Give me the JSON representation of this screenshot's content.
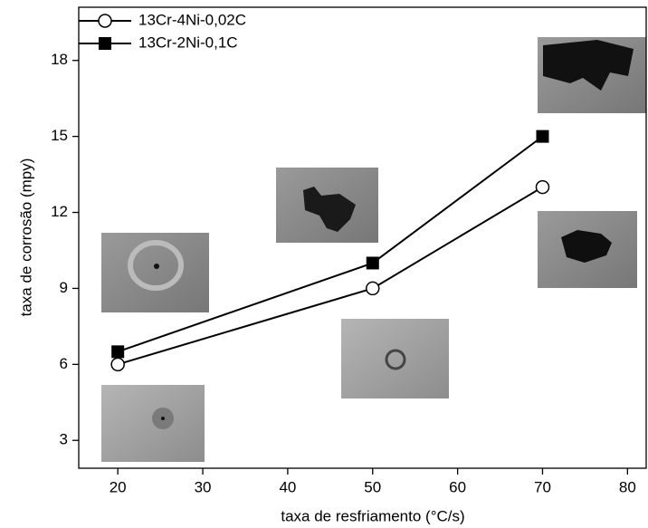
{
  "chart_data": {
    "type": "line",
    "x_label": "taxa de resfriamento (°C/s)",
    "y_label": "taxa de corrosão (mpy)",
    "x": [
      20,
      50,
      70
    ],
    "series": [
      {
        "name": "13Cr-4Ni-0,02C",
        "marker": "open-circle",
        "color": "#000000",
        "values": [
          6,
          9,
          13
        ]
      },
      {
        "name": "13Cr-2Ni-0,1C",
        "marker": "filled-square",
        "color": "#000000",
        "values": [
          6.5,
          10,
          15
        ]
      }
    ],
    "xlim": [
      15.4,
      82.2
    ],
    "xticks": [
      20,
      30,
      40,
      50,
      60,
      70,
      80
    ],
    "ylim": [
      1.9,
      20.1
    ],
    "yticks": [
      3,
      6,
      9,
      12,
      15,
      18
    ],
    "legend": "upper-left"
  }
}
